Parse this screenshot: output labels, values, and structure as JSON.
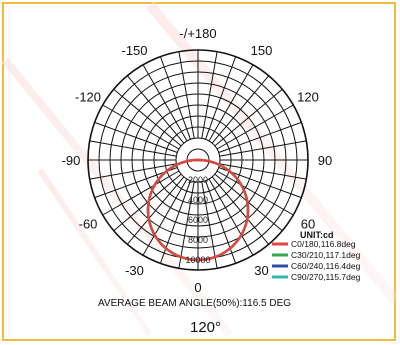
{
  "chart_data": {
    "type": "polar",
    "angle_labels": [
      "-/+180",
      "150",
      "120",
      "90",
      "60",
      "30",
      "0",
      "-30",
      "-60",
      "-90",
      "-120",
      "-150"
    ],
    "radial_ticks": [
      2000,
      4000,
      6000,
      8000,
      10000
    ],
    "rmax": 11000,
    "unit_label": "UNIT:cd",
    "series": [
      {
        "name": "C0/180,116.8deg",
        "color": "#e2463f",
        "beam_angle_deg": 116.8,
        "peak_cd": 10000
      },
      {
        "name": "C30/210,117.1deg",
        "color": "#32a852",
        "beam_angle_deg": 117.1,
        "peak_cd": 10000
      },
      {
        "name": "C60/240,116.4deg",
        "color": "#2b4fa8",
        "beam_angle_deg": 116.4,
        "peak_cd": 10000
      },
      {
        "name": "C90/270,115.7deg",
        "color": "#2bb8b0",
        "beam_angle_deg": 115.7,
        "peak_cd": 10000
      }
    ],
    "average_beam_angle_text": "AVERAGE BEAM ANGLE(50%):116.5 DEG",
    "beam_angle_big": "120°"
  }
}
